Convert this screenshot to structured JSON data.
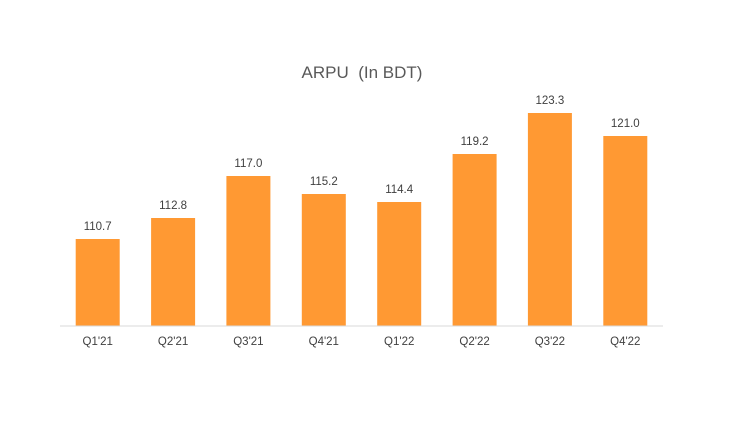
{
  "chart_data": {
    "type": "bar",
    "title": "ARPU  (In BDT)",
    "xlabel": "",
    "ylabel": "",
    "categories": [
      "Q1'21",
      "Q2'21",
      "Q3'21",
      "Q4'21",
      "Q1'22",
      "Q2'22",
      "Q3'22",
      "Q4'22"
    ],
    "values": [
      110.7,
      112.8,
      117.0,
      115.2,
      114.4,
      119.2,
      123.3,
      121.0
    ],
    "data_labels": [
      "110.7",
      "112.8",
      "117.0",
      "115.2",
      "114.4",
      "119.2",
      "123.3",
      "121.0"
    ],
    "ylim": [
      102,
      125
    ],
    "grid": false,
    "legend": "none",
    "bar_color": "#FF9933",
    "axis_color": "#D9D9D9"
  }
}
